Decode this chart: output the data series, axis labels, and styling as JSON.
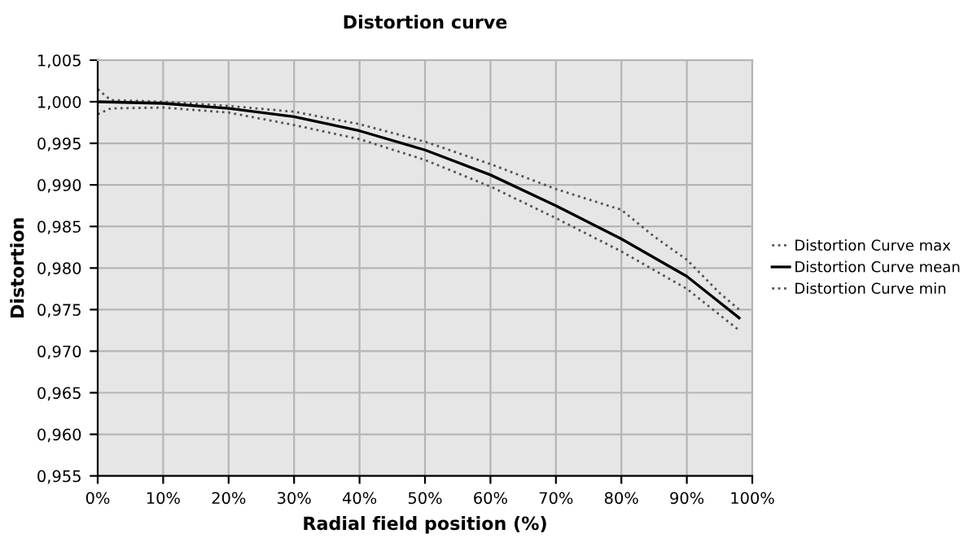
{
  "chart_data": {
    "type": "line",
    "title": "Distortion curve",
    "xlabel": "Radial field position (%)",
    "ylabel": "Distortion",
    "xlim": [
      0,
      100
    ],
    "ylim": [
      0.955,
      1.005
    ],
    "xticks": [
      {
        "value": 0,
        "label": "0%"
      },
      {
        "value": 10,
        "label": "10%"
      },
      {
        "value": 20,
        "label": "20%"
      },
      {
        "value": 30,
        "label": "30%"
      },
      {
        "value": 40,
        "label": "40%"
      },
      {
        "value": 50,
        "label": "50%"
      },
      {
        "value": 60,
        "label": "60%"
      },
      {
        "value": 70,
        "label": "70%"
      },
      {
        "value": 80,
        "label": "80%"
      },
      {
        "value": 90,
        "label": "90%"
      },
      {
        "value": 100,
        "label": "100%"
      }
    ],
    "yticks": [
      {
        "value": 0.955,
        "label": "0,955"
      },
      {
        "value": 0.96,
        "label": "0,960"
      },
      {
        "value": 0.965,
        "label": "0,965"
      },
      {
        "value": 0.97,
        "label": "0,970"
      },
      {
        "value": 0.975,
        "label": "0,975"
      },
      {
        "value": 0.98,
        "label": "0,980"
      },
      {
        "value": 0.985,
        "label": "0,985"
      },
      {
        "value": 0.99,
        "label": "0,990"
      },
      {
        "value": 0.995,
        "label": "0,995"
      },
      {
        "value": 1.0,
        "label": "1,000"
      },
      {
        "value": 1.005,
        "label": "1,005"
      }
    ],
    "grid": true,
    "legend": "right",
    "marker": "none",
    "series": [
      {
        "name": "Distortion Curve max",
        "color": "#555555",
        "line_style": "dotted",
        "x": [
          0,
          2,
          10,
          20,
          30,
          40,
          50,
          60,
          70,
          80,
          85,
          90,
          95,
          98
        ],
        "values": [
          1.0015,
          1.0002,
          1.0,
          0.9995,
          0.9988,
          0.9973,
          0.9952,
          0.9925,
          0.9895,
          0.987,
          0.9838,
          0.981,
          0.977,
          0.975
        ]
      },
      {
        "name": "Distortion Curve mean",
        "color": "#000000",
        "line_style": "solid",
        "x": [
          0,
          10,
          20,
          30,
          40,
          50,
          60,
          70,
          80,
          90,
          98
        ],
        "values": [
          1.0,
          0.9998,
          0.9992,
          0.9982,
          0.9965,
          0.9942,
          0.9912,
          0.9875,
          0.9835,
          0.979,
          0.974
        ]
      },
      {
        "name": "Distortion Curve min",
        "color": "#555555",
        "line_style": "dotted",
        "x": [
          0,
          2,
          10,
          20,
          30,
          40,
          50,
          60,
          70,
          80,
          90,
          98
        ],
        "values": [
          0.9985,
          0.9992,
          0.9993,
          0.9987,
          0.9972,
          0.9955,
          0.993,
          0.9898,
          0.986,
          0.982,
          0.9775,
          0.9725
        ]
      }
    ]
  }
}
